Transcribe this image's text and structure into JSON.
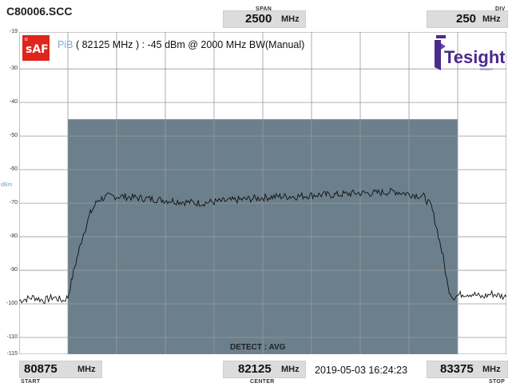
{
  "file_name": "C80006.SCC",
  "span": {
    "caption": "SPAN",
    "value": "2500",
    "unit": "MHz"
  },
  "div": {
    "caption": "DIV",
    "value": "250",
    "unit": "MHz"
  },
  "start": {
    "caption": "START",
    "value": "80875",
    "unit": "MHz"
  },
  "center": {
    "caption": "CENTER",
    "value": "82125",
    "unit": "MHz"
  },
  "stop": {
    "caption": "STOP",
    "value": "83375",
    "unit": "MHz"
  },
  "timestamp": "2019-05-03 16:24:23",
  "y_unit": "dBm",
  "pib_label": {
    "name": "PiB",
    "text": "( 82125 MHz ) : -45  dBm @ 2000 MHz BW(Manual)"
  },
  "detect_label": "DETECT : AVG",
  "logos": {
    "saf_small": "ltl",
    "saf_big": "sAF",
    "tesight": "Tesight",
    "tesight_sub": "TESIGHT"
  },
  "colors": {
    "band": "#6b7f8c",
    "trace": "#111111",
    "grid": "#9a9a9a",
    "logo_red": "#e0251b",
    "logo_purple": "#4a2a8c"
  },
  "chart_data": {
    "type": "line",
    "x_unit": "MHz",
    "y_unit": "dBm",
    "xlim": [
      80875,
      83375
    ],
    "ylim": [
      -115,
      -19
    ],
    "y_ticks": [
      -19,
      -30,
      -40,
      -50,
      -60,
      -70,
      -80,
      -90,
      -100,
      -110,
      -115
    ],
    "grid": true,
    "highlight_band": [
      81125,
      83125
    ],
    "series": [
      {
        "x": [
          80875,
          80950,
          81000,
          81050,
          81100,
          81125,
          81160,
          81200,
          81240,
          81280,
          81330,
          81400,
          81500,
          81600,
          81700,
          81800,
          81900,
          82000,
          82100,
          82200,
          82300,
          82400,
          82500,
          82600,
          82700,
          82800,
          82850,
          82900,
          82950,
          82990,
          83020,
          83050,
          83075,
          83100,
          83150,
          83200,
          83250,
          83300,
          83375
        ],
        "y": [
          -99,
          -98,
          -99,
          -98,
          -99,
          -98,
          -89,
          -80,
          -73,
          -69,
          -68,
          -68,
          -68.5,
          -69,
          -69.5,
          -70,
          -69.5,
          -69,
          -68.5,
          -68,
          -68,
          -67.5,
          -67.5,
          -67,
          -67,
          -66.5,
          -67,
          -67.5,
          -68,
          -71,
          -78,
          -86,
          -95,
          -98,
          -97,
          -97,
          -98,
          -97,
          -98
        ]
      }
    ]
  }
}
